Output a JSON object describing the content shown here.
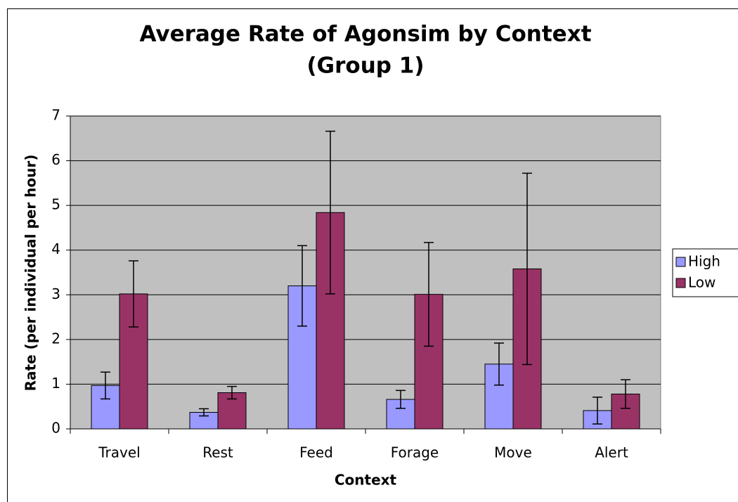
{
  "chart_data": {
    "type": "bar",
    "title": [
      "Average Rate of Agonsim by Context",
      "(Group 1)"
    ],
    "x_label": "Context",
    "y_label": "Rate (per individual per hour)",
    "categories": [
      "Travel",
      "Rest",
      "Feed",
      "Forage",
      "Move",
      "Alert"
    ],
    "series": [
      {
        "name": "High",
        "color": "#9999ff",
        "values": [
          0.97,
          0.37,
          3.2,
          0.66,
          1.45,
          0.41
        ],
        "errors": [
          0.3,
          0.08,
          0.9,
          0.2,
          0.47,
          0.3
        ]
      },
      {
        "name": "Low",
        "color": "#993366",
        "values": [
          3.02,
          0.81,
          4.84,
          3.01,
          3.58,
          0.78
        ],
        "errors": [
          0.74,
          0.14,
          1.82,
          1.16,
          2.14,
          0.32
        ]
      }
    ],
    "ylim": [
      0,
      7
    ],
    "yticks": [
      0,
      1,
      2,
      3,
      4,
      5,
      6,
      7
    ],
    "grid": true,
    "legend": "right"
  }
}
